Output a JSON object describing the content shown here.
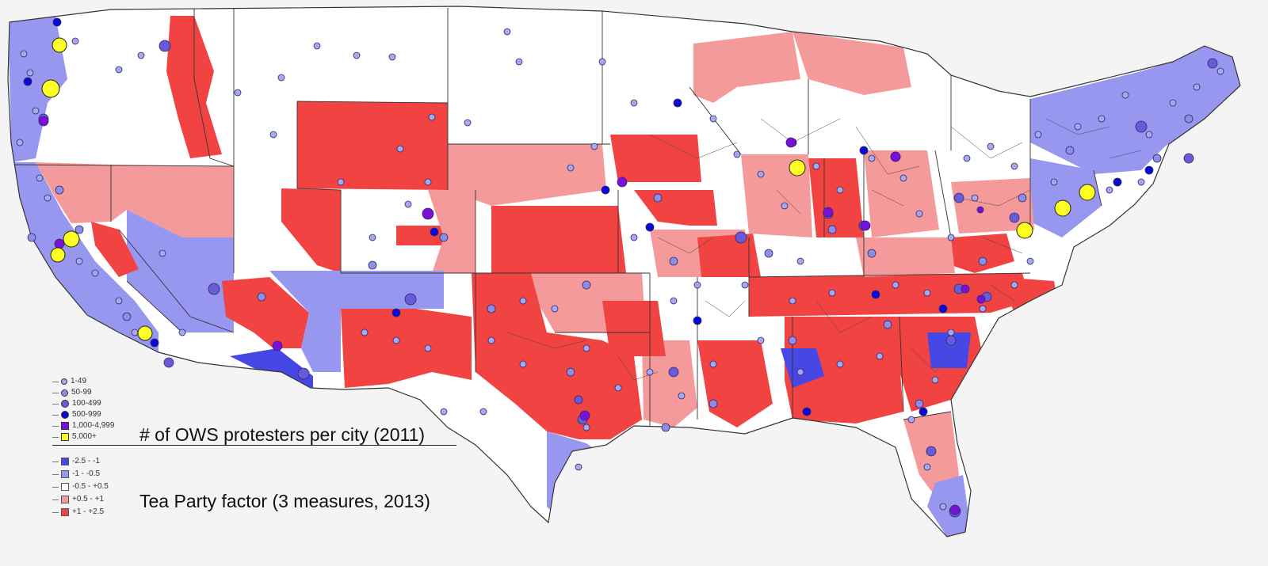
{
  "map": {
    "colors": {
      "background": "#f4f4f4",
      "strong_blue": "#4747e6",
      "light_blue": "#9797f0",
      "neutral": "#ffffff",
      "light_red": "#f59a9a",
      "strong_red": "#f24343",
      "border": "#333333"
    },
    "protest_legend_title": "# of OWS protesters per city (2011)",
    "tea_legend_title": "Tea Party factor (3 measures, 2013)",
    "protest_classes": [
      {
        "label": "1-49",
        "color": "#a8a8ee",
        "shape": "circle"
      },
      {
        "label": "50-99",
        "color": "#8d8de8",
        "shape": "circle"
      },
      {
        "label": "100-499",
        "color": "#6a5ad8",
        "shape": "circle"
      },
      {
        "label": "500-999",
        "color": "#0a0ad8",
        "shape": "circle"
      },
      {
        "label": "1,000-4,999",
        "color": "#7a10d8",
        "shape": "square"
      },
      {
        "label": "5,000+",
        "color": "#ffff22",
        "shape": "square"
      }
    ],
    "tea_classes": [
      {
        "label": "-2.5 - -1",
        "color": "#4747e6"
      },
      {
        "label": "-1 - -0.5",
        "color": "#9797f0"
      },
      {
        "label": "-0.5 - +0.5",
        "color": "#ffffff"
      },
      {
        "label": "+0.5 - +1",
        "color": "#f59a9a"
      },
      {
        "label": "+1 - +2.5",
        "color": "#f24343"
      }
    ]
  }
}
